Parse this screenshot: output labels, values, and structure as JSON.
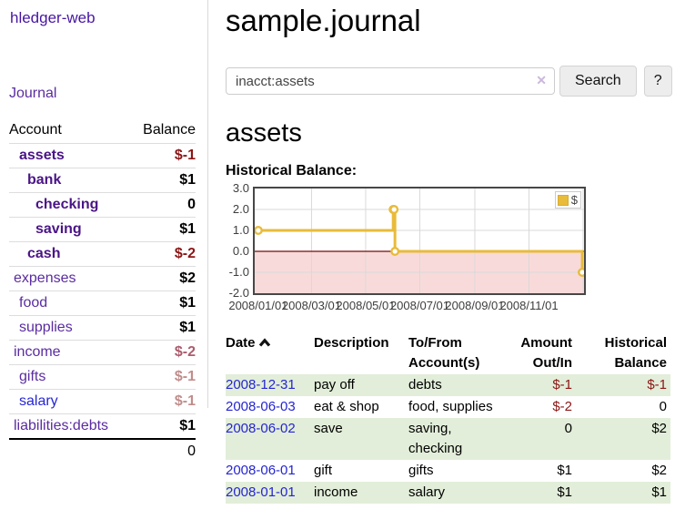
{
  "app": {
    "brand": "hledger-web"
  },
  "sidebar": {
    "nav": {
      "journal_label": "Journal"
    },
    "accounts_header": {
      "account": "Account",
      "balance": "Balance"
    },
    "accounts": [
      {
        "name": "assets",
        "indent": 0,
        "emphasis": true,
        "link_color": "purple",
        "balance": "$-1",
        "balance_style": "neg"
      },
      {
        "name": "bank",
        "indent": 1,
        "emphasis": true,
        "link_color": "purple",
        "balance": "$1",
        "balance_style": "pos"
      },
      {
        "name": "checking",
        "indent": 2,
        "emphasis": true,
        "link_color": "purple",
        "balance": "0",
        "balance_style": "pos"
      },
      {
        "name": "saving",
        "indent": 2,
        "emphasis": true,
        "link_color": "purple",
        "balance": "$1",
        "balance_style": "pos"
      },
      {
        "name": "cash",
        "indent": 1,
        "emphasis": true,
        "link_color": "purple",
        "balance": "$-2",
        "balance_style": "neg"
      },
      {
        "name": "expenses",
        "indent": 0,
        "emphasis": false,
        "link_color": "purple",
        "balance": "$2",
        "balance_style": "pos"
      },
      {
        "name": "food",
        "indent": 1,
        "emphasis": false,
        "link_color": "purple",
        "balance": "$1",
        "balance_style": "pos"
      },
      {
        "name": "supplies",
        "indent": 1,
        "emphasis": false,
        "link_color": "purple",
        "balance": "$1",
        "balance_style": "pos"
      },
      {
        "name": "income",
        "indent": 0,
        "emphasis": false,
        "link_color": "purple",
        "balance": "$-2",
        "balance_style": "negmuted"
      },
      {
        "name": "gifts",
        "indent": 1,
        "emphasis": false,
        "link_color": "purple",
        "balance": "$-1",
        "balance_style": "negfaint"
      },
      {
        "name": "salary",
        "indent": 1,
        "emphasis": false,
        "link_color": "blue",
        "balance": "$-1",
        "balance_style": "negfaint"
      },
      {
        "name": "liabilities:debts",
        "indent": 0,
        "emphasis": false,
        "link_color": "purple",
        "balance": "$1",
        "balance_style": "pos"
      }
    ],
    "total": "0"
  },
  "main": {
    "title": "sample.journal",
    "search": {
      "value": "inacct:assets",
      "clear_icon": "✕",
      "button_label": "Search",
      "help_label": "?"
    },
    "account_heading": "assets",
    "chart_label": "Historical Balance:"
  },
  "chart_data": {
    "type": "line",
    "step": true,
    "title": "Historical Balance:",
    "series": [
      {
        "name": "$",
        "color": "#e8bb3a"
      }
    ],
    "points": [
      [
        "2008-01-01",
        1
      ],
      [
        "2008-06-01",
        2
      ],
      [
        "2008-06-02",
        2
      ],
      [
        "2008-06-03",
        0
      ],
      [
        "2008-12-31",
        -1
      ]
    ],
    "ylim": [
      -2,
      3
    ],
    "yticks": [
      "3.0",
      "2.0",
      "1.0",
      "0.0",
      "-1.0",
      "-2.0"
    ],
    "xtick_labels": [
      "2008/01/01",
      "2008/03/01",
      "2008/05/01",
      "2008/07/01",
      "2008/09/01",
      "2008/11/01"
    ],
    "grid_dates": [
      "2008-03-01",
      "2008-05-01",
      "2008-07-01",
      "2008-09-01",
      "2008-11-01",
      "2009-01-01"
    ],
    "xrange": [
      "2008-01-01",
      "2008-12-31"
    ],
    "grid": true,
    "legend": {
      "label": "$",
      "position": "top-right"
    },
    "colors": {
      "series": "#e8bb3a",
      "negative_region": "#f9dada",
      "zero_line": "#7a0b0b",
      "gridline": "#d9d9d9",
      "border": "#474747"
    }
  },
  "transactions": {
    "columns": [
      "Date",
      "Description",
      "To/From Account(s)",
      "Amount Out/In",
      "Historical Balance"
    ],
    "rows": [
      {
        "date": "2008-12-31",
        "description": "pay off",
        "accounts": "debts",
        "amount": "$-1",
        "amount_negative": true,
        "balance": "$-1",
        "balance_negative": true,
        "shaded": true
      },
      {
        "date": "2008-06-03",
        "description": "eat & shop",
        "accounts": "food, supplies",
        "amount": "$-2",
        "amount_negative": true,
        "balance": "0",
        "balance_negative": false,
        "shaded": false
      },
      {
        "date": "2008-06-02",
        "description": "save",
        "accounts": "saving, checking",
        "amount": "0",
        "amount_negative": false,
        "balance": "$2",
        "balance_negative": false,
        "shaded": true
      },
      {
        "date": "2008-06-01",
        "description": "gift",
        "accounts": "gifts",
        "amount": "$1",
        "amount_negative": false,
        "balance": "$2",
        "balance_negative": false,
        "shaded": false
      },
      {
        "date": "2008-01-01",
        "description": "income",
        "accounts": "salary",
        "amount": "$1",
        "amount_negative": false,
        "balance": "$1",
        "balance_negative": false,
        "shaded": true
      }
    ]
  },
  "colors": {
    "link_purple": "#5a2ca0",
    "link_purple_bold": "#4a1486",
    "link_blue": "#2626d4",
    "negative_strong": "#8c1515",
    "negative_muted": "#ab5c6c",
    "row_green": "#e2eed9",
    "chart_gold": "#e8bb3a"
  }
}
